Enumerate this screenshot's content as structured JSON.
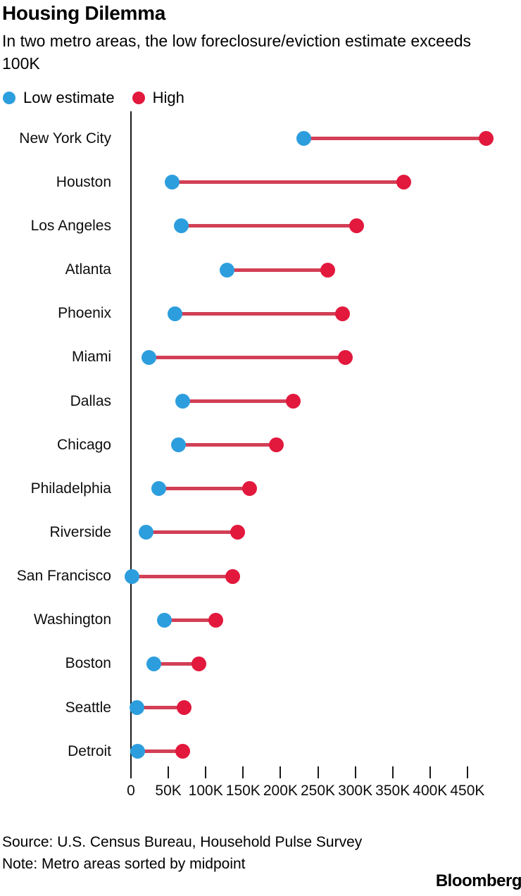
{
  "header": {
    "title": "Housing Dilemma",
    "subtitle": "In two metro areas, the low foreclosure/eviction estimate exceeds 100K"
  },
  "legend": {
    "low_label": "Low estimate",
    "high_label": "High"
  },
  "colors": {
    "low": "#2d9edd",
    "high": "#e2183d",
    "connector": "#d23f56",
    "axis": "#1a1a1a"
  },
  "chart_data": {
    "type": "dumbbell",
    "orientation": "horizontal",
    "xlabel": "",
    "ylabel": "",
    "grid": false,
    "legend_position": "top-left",
    "x_axis": {
      "min": 0,
      "max": 450000,
      "tick_step": 50000,
      "tick_values": [
        0,
        50000,
        100000,
        150000,
        200000,
        250000,
        300000,
        350000,
        400000,
        450000
      ],
      "tick_labels": [
        "0",
        "50K",
        "100K",
        "150K",
        "200K",
        "250K",
        "300K",
        "350K",
        "400K",
        "450K"
      ]
    },
    "series": [
      {
        "name": "Low estimate",
        "color_key": "low"
      },
      {
        "name": "High",
        "color_key": "high"
      }
    ],
    "rows": [
      {
        "metro": "New York City",
        "low": 231000,
        "high": 475000
      },
      {
        "metro": "Houston",
        "low": 55000,
        "high": 365000
      },
      {
        "metro": "Los Angeles",
        "low": 67000,
        "high": 302000
      },
      {
        "metro": "Atlanta",
        "low": 129000,
        "high": 263000
      },
      {
        "metro": "Phoenix",
        "low": 59000,
        "high": 283000
      },
      {
        "metro": "Miami",
        "low": 24000,
        "high": 287000
      },
      {
        "metro": "Dallas",
        "low": 69000,
        "high": 217000
      },
      {
        "metro": "Chicago",
        "low": 64000,
        "high": 194000
      },
      {
        "metro": "Philadelphia",
        "low": 37000,
        "high": 159000
      },
      {
        "metro": "Riverside",
        "low": 20000,
        "high": 143000
      },
      {
        "metro": "San Francisco",
        "low": 1000,
        "high": 136000
      },
      {
        "metro": "Washington",
        "low": 45000,
        "high": 113000
      },
      {
        "metro": "Boston",
        "low": 31000,
        "high": 91000
      },
      {
        "metro": "Seattle",
        "low": 8000,
        "high": 71000
      },
      {
        "metro": "Detroit",
        "low": 9000,
        "high": 69000
      }
    ]
  },
  "footer": {
    "source": "Source: U.S. Census Bureau, Household Pulse Survey",
    "note": "Note: Metro areas sorted by midpoint",
    "brand": "Bloomberg"
  }
}
